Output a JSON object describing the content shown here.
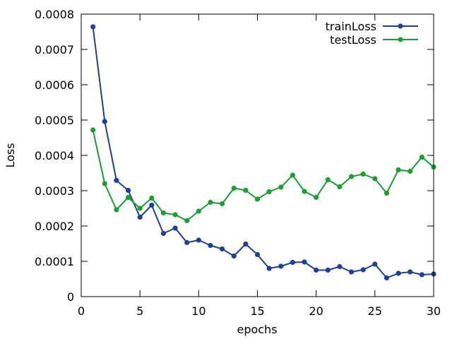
{
  "chart_data": {
    "type": "line",
    "xlabel": "epochs",
    "ylabel": "Loss",
    "xlim": [
      0,
      30
    ],
    "ylim": [
      0,
      0.0008
    ],
    "x_ticks": [
      0,
      5,
      10,
      15,
      20,
      25,
      30
    ],
    "x_tick_labels": [
      "0",
      "5",
      "10",
      "15",
      "20",
      "25",
      "30"
    ],
    "y_ticks": [
      0,
      0.0001,
      0.0002,
      0.0003,
      0.0004,
      0.0005,
      0.0006,
      0.0007,
      0.0008
    ],
    "y_tick_labels": [
      "0",
      "0.0001",
      "0.0002",
      "0.0003",
      "0.0004",
      "0.0005",
      "0.0006",
      "0.0007",
      "0.0008"
    ],
    "grid": false,
    "legend_position": "top-right",
    "x": [
      1,
      2,
      3,
      4,
      5,
      6,
      7,
      8,
      9,
      10,
      11,
      12,
      13,
      14,
      15,
      16,
      17,
      18,
      19,
      20,
      21,
      22,
      23,
      24,
      25,
      26,
      27,
      28,
      29,
      30
    ],
    "series": [
      {
        "name": "trainLoss",
        "color": "#1f3f99",
        "values": [
          0.000764,
          0.000496,
          0.000329,
          0.000301,
          0.000225,
          0.000259,
          0.000179,
          0.000194,
          0.000153,
          0.00016,
          0.000145,
          0.000135,
          0.000115,
          0.000149,
          0.000119,
          8e-05,
          8.6e-05,
          9.7e-05,
          9.8e-05,
          7.5e-05,
          7.5e-05,
          8.5e-05,
          7e-05,
          7.6e-05,
          9.2e-05,
          5.3e-05,
          6.6e-05,
          7e-05,
          6.2e-05,
          6.4e-05
        ]
      },
      {
        "name": "testLoss",
        "color": "#18a030",
        "values": [
          0.000472,
          0.00032,
          0.000246,
          0.000281,
          0.00025,
          0.000279,
          0.000237,
          0.000232,
          0.000215,
          0.000242,
          0.000267,
          0.000263,
          0.000307,
          0.000301,
          0.000276,
          0.000297,
          0.00031,
          0.000344,
          0.000298,
          0.000281,
          0.000331,
          0.000311,
          0.00034,
          0.000347,
          0.000334,
          0.000293,
          0.000359,
          0.000355,
          0.000395,
          0.000367
        ]
      }
    ]
  }
}
